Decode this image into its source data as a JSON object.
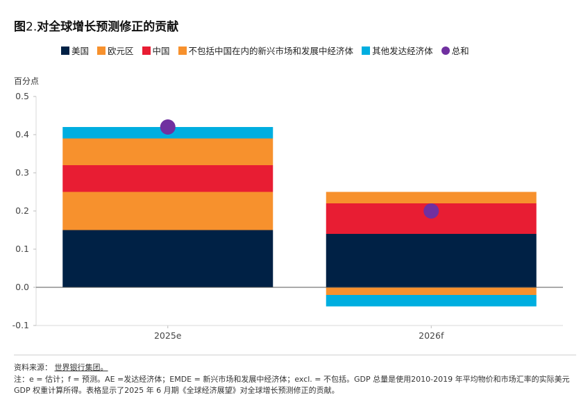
{
  "title_prefix": "图",
  "title_num": "2.",
  "title_text": "对全球增长预测修正的贡献",
  "unit_label": "百分点",
  "colors": {
    "us": "#002145",
    "euro": "#f7912d",
    "china": "#e81d33",
    "emde_ex_china": "#f7912d",
    "other_ae": "#00aee0",
    "total": "#7030a0",
    "axis": "#333333",
    "grid": "#e4e4e4"
  },
  "legend": [
    {
      "key": "us",
      "label": "美国",
      "shape": "square"
    },
    {
      "key": "euro",
      "label": "欧元区",
      "shape": "square"
    },
    {
      "key": "china",
      "label": "中国",
      "shape": "square"
    },
    {
      "key": "emde_ex_china",
      "label": "不包括中国在内的新兴市场和发展中经济体",
      "shape": "square"
    },
    {
      "key": "other_ae",
      "label": "其他发达经济体",
      "shape": "square"
    },
    {
      "key": "total",
      "label": "总和",
      "shape": "dot"
    }
  ],
  "chart_data": {
    "type": "bar",
    "stacked": true,
    "categories": [
      "2025e",
      "2026f"
    ],
    "series": [
      {
        "key": "us",
        "name": "美国",
        "values": [
          0.15,
          0.14
        ]
      },
      {
        "key": "euro",
        "name": "欧元区",
        "values": [
          0.1,
          -0.02
        ]
      },
      {
        "key": "china",
        "name": "中国",
        "values": [
          0.07,
          0.08
        ]
      },
      {
        "key": "emde_ex_china",
        "name": "不包括中国在内的新兴市场和发展中经济体",
        "values": [
          0.07,
          0.03
        ]
      },
      {
        "key": "other_ae",
        "name": "其他发达经济体",
        "values": [
          0.03,
          -0.03
        ]
      }
    ],
    "totals": {
      "name": "总和",
      "values": [
        0.42,
        0.2
      ]
    },
    "ylim": [
      -0.1,
      0.5
    ],
    "yticks": [
      "-0.1",
      "0.0",
      "0.1",
      "0.2",
      "0.3",
      "0.4",
      "0.5"
    ],
    "ylabel": "百分点",
    "xlabel": "",
    "grid": false,
    "legend_position": "top"
  },
  "source_label": "资料来源：",
  "source_link": "世界银行集团。",
  "note": "注：e = 估计；f = 预测。AE =发达经济体；EMDE = 新兴市场和发展中经济体；excl. = 不包括。GDP 总量是使用2010-2019 年平均物价和市场汇率的实际美元 GDP 权重计算所得。表格显示了2025 年 6 月期《全球经济展望》对全球增长预测修正的贡献。"
}
